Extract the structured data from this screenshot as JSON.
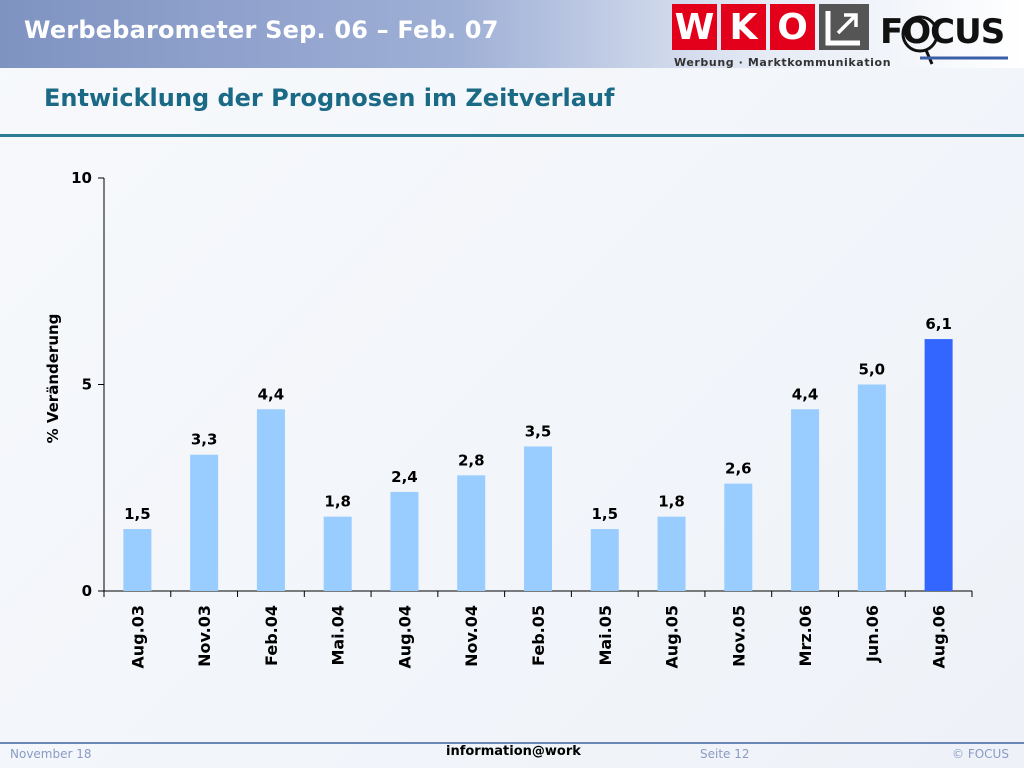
{
  "header": {
    "title": "Werbebarometer Sep. 06 – Feb. 07",
    "wko": {
      "letters": [
        "W",
        "K",
        "O"
      ],
      "subtitle": "Werbung · Marktkommunikation",
      "arrow_icon": "arrow-up-right-icon"
    },
    "focus_logo": "FOCUS"
  },
  "page_title": "Entwicklung der Prognosen im Zeitverlauf",
  "chart_data": {
    "type": "bar",
    "title": "",
    "ylabel": "% Veränderung",
    "xlabel": "",
    "categories": [
      "Aug.03",
      "Nov.03",
      "Feb.04",
      "Mai.04",
      "Aug.04",
      "Nov.04",
      "Feb.05",
      "Mai.05",
      "Aug.05",
      "Nov.05",
      "Mrz.06",
      "Jun.06",
      "Aug.06"
    ],
    "values": [
      1.5,
      3.3,
      4.4,
      1.8,
      2.4,
      2.8,
      3.5,
      1.5,
      1.8,
      2.6,
      4.4,
      5.0,
      6.1
    ],
    "value_labels": [
      "1,5",
      "3,3",
      "4,4",
      "1,8",
      "2,4",
      "2,8",
      "3,5",
      "1,5",
      "1,8",
      "2,6",
      "4,4",
      "5,0",
      "6,1"
    ],
    "ylim": [
      0,
      10
    ],
    "yticks": [
      0,
      5,
      10
    ],
    "ytick_labels": [
      "0",
      "5",
      "10"
    ],
    "grid": false,
    "legend": "none",
    "colors": {
      "default": "#99ccff",
      "highlight": "#3366ff"
    },
    "highlight_index": 12
  },
  "footer": {
    "date": "November 18",
    "center": "information@work",
    "page": "Seite 12",
    "copyright": "© FOCUS"
  }
}
